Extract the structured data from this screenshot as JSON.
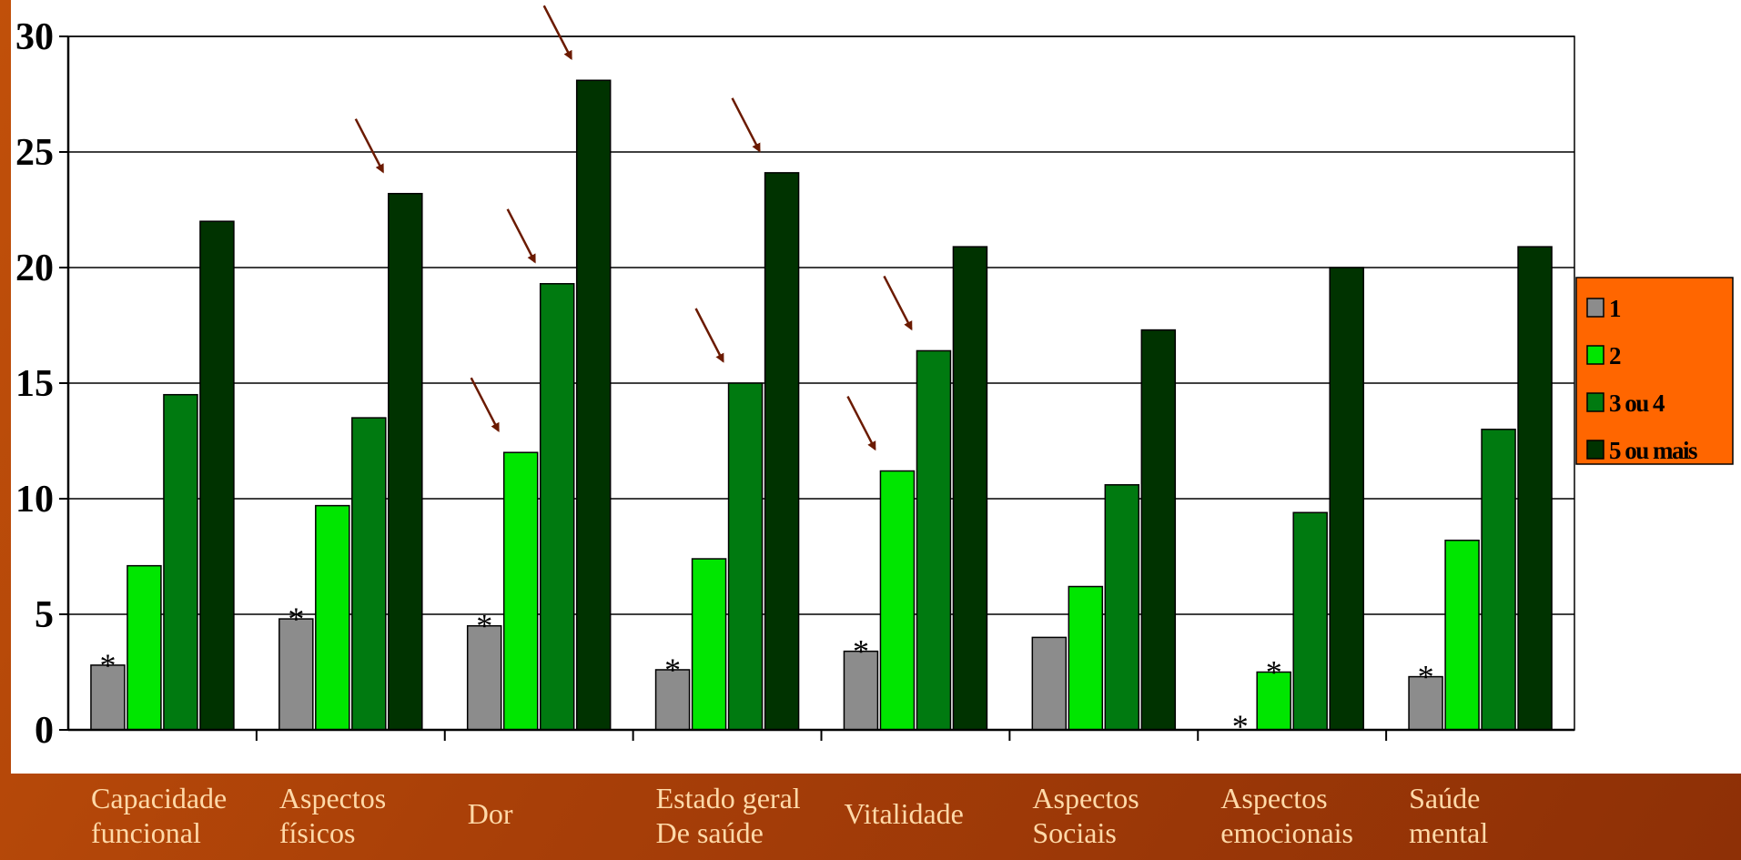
{
  "chart_data": {
    "type": "bar",
    "categories": [
      [
        "Capacidade",
        "funcional"
      ],
      [
        "Aspectos",
        "físicos"
      ],
      [
        "Dor"
      ],
      [
        "Estado geral",
        "De saúde"
      ],
      [
        "Vitalidade"
      ],
      [
        "Aspectos",
        "Sociais"
      ],
      [
        "Aspectos",
        "emocionais"
      ],
      [
        "Saúde",
        "mental"
      ]
    ],
    "series": [
      {
        "name": "1",
        "color": "#8c8c8c",
        "values": [
          2.8,
          4.8,
          4.5,
          2.6,
          3.4,
          4.0,
          0,
          2.3
        ]
      },
      {
        "name": "2",
        "color": "#00e600",
        "values": [
          7.1,
          9.7,
          12.0,
          7.4,
          11.2,
          6.2,
          2.5,
          8.2
        ]
      },
      {
        "name": "3 ou 4",
        "color": "#007a10",
        "values": [
          14.5,
          13.5,
          19.3,
          15.0,
          16.4,
          10.6,
          9.4,
          13.0
        ]
      },
      {
        "name": "5 ou mais",
        "color": "#003300",
        "values": [
          22.0,
          23.2,
          28.1,
          24.1,
          20.9,
          17.3,
          20.0,
          20.9
        ]
      }
    ],
    "yticks": [
      "0",
      "5",
      "10",
      "15",
      "20",
      "25",
      "30"
    ],
    "ylim": [
      0,
      30
    ],
    "grid": true,
    "legend_position": "right",
    "star_marker": "*",
    "starred_categories": [
      0,
      1,
      2,
      3,
      4,
      6,
      7
    ],
    "arrow_marks": [
      {
        "category": 1,
        "series": 3
      },
      {
        "category": 2,
        "series": 1
      },
      {
        "category": 2,
        "series": 2
      },
      {
        "category": 2,
        "series": 3
      },
      {
        "category": 3,
        "series": 2
      },
      {
        "category": 3,
        "series": 3
      },
      {
        "category": 4,
        "series": 1
      },
      {
        "category": 4,
        "series": 2
      }
    ],
    "colors": {
      "legend_background": "#ff6600",
      "arrow": "#6b1a00",
      "axis_label_text": "#ffd9a8"
    }
  }
}
